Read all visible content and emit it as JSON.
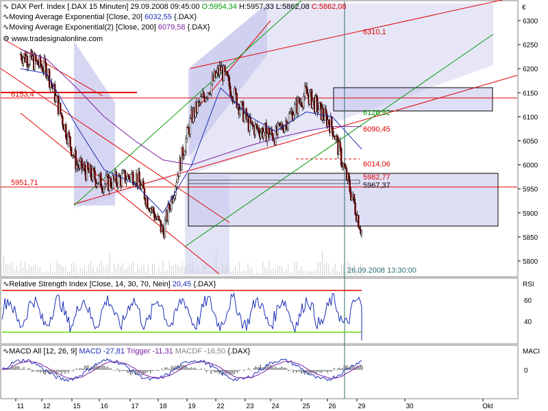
{
  "currency_symbol": "€",
  "colors": {
    "price_ema20": "#1a2db5",
    "price_ema200": "#7a1fa2",
    "red": "#e00000",
    "green": "#009a00",
    "rsi_line": "#1a2db5",
    "rsi_70": "#e00000",
    "rsi_30": "#66dd00",
    "macd": "#1a2db5",
    "trigger": "#7a1fa2",
    "band_fill": "#c8c8ee",
    "cursor_line": "#2a6f6f"
  },
  "header": {
    "title": "DAX Perf. Index [.DAX  15 Minuten]",
    "datetime": "29.09.2008 09:45:00",
    "open": "O:5954,34",
    "high": "H:5957,33",
    "low": "L:5862,08",
    "close": "C:5862,08",
    "ema20_label": "Moving Average Exponential [Close, 20]",
    "ema20_value": "6032,55",
    "ema20_sym": "{.DAX}",
    "ema200_label": "Moving Average Exponential(2) [Close, 200]",
    "ema200_value": "6079,58",
    "ema200_sym": "{.DAX}",
    "source": "www.tradesignalonline.com"
  },
  "price_levels": {
    "l6310": "6310,1",
    "l6126": "6126,92",
    "l6090": "6090,45",
    "l6014": "6014,06",
    "l5982": "5982,77",
    "l5967": "5967,37",
    "l5951": "5951,71",
    "l6153": "6153,4"
  },
  "cursor_label": "26.09.2008 13:30:00",
  "rsi": {
    "label": "Relative Strength Index [Close, 14, 30, 70, Nein]",
    "value": "20,45",
    "sym": "{.DAX}",
    "axis_name": "RSI",
    "ticks": [
      "60",
      "40"
    ]
  },
  "macd": {
    "label": "MACD All [12, 26, 9]",
    "macd_text": "MACD -27,81",
    "trigger_text": "Trigger -11,31",
    "macdiff_text": "MACDF -16,50",
    "sym": "{.DAX}",
    "axis_name": "MACI",
    "ticks": [
      "0"
    ]
  },
  "chart_data": {
    "type": "line",
    "title": "DAX Perf. Index [.DAX  15 Minuten]",
    "y_axis_ticks": [
      "6300",
      "6250",
      "6200",
      "6150",
      "6100",
      "6050",
      "6000",
      "5950",
      "5900",
      "5850",
      "5800"
    ],
    "ylim": [
      5770,
      6340
    ],
    "x_ticks": [
      "11",
      "12",
      "15",
      "16",
      "17",
      "18",
      "19",
      "22",
      "23",
      "24",
      "25",
      "26",
      "29",
      "30",
      "Okt"
    ],
    "series": [
      {
        "name": "DAX Perf. Index",
        "x": [
          "11",
          "12",
          "15",
          "16",
          "17",
          "18",
          "19",
          "22",
          "23",
          "24",
          "25",
          "26",
          "29"
        ],
        "values": [
          6230,
          6200,
          6000,
          5960,
          5980,
          5860,
          6100,
          6200,
          6080,
          6060,
          6150,
          6080,
          5862
        ]
      },
      {
        "name": "Moving Average Exponential [Close, 20]",
        "values": [
          6200,
          6190,
          6080,
          5990,
          5960,
          5900,
          6000,
          6160,
          6100,
          6070,
          6110,
          6100,
          6032.55
        ]
      },
      {
        "name": "Moving Average Exponential(2) [Close, 200]",
        "values": [
          6240,
          6220,
          6160,
          6100,
          6050,
          6010,
          6000,
          6020,
          6040,
          6055,
          6070,
          6080,
          6079.58
        ]
      }
    ]
  }
}
